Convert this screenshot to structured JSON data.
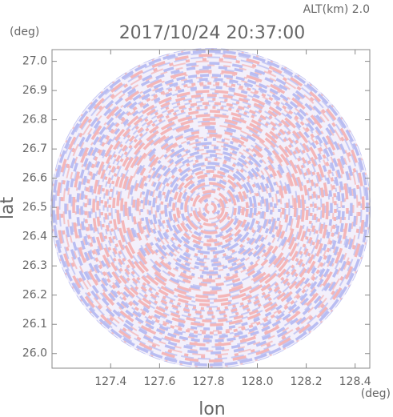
{
  "chart_data": {
    "type": "radar-field",
    "title": "2017/10/24 20:37:00",
    "annotation": "ALT(km) 2.0",
    "x_label": "lon",
    "y_label": "lat",
    "x_unit": "(deg)",
    "y_unit": "(deg)",
    "xlim": [
      127.16,
      128.46
    ],
    "ylim": [
      25.95,
      27.04
    ],
    "xticks": [
      127.4,
      127.6,
      127.8,
      {
        "value": 128,
        "label": "128.0"
      },
      128.2,
      128.4
    ],
    "yticks": [
      {
        "value": 26,
        "label": "26.0"
      },
      26.1,
      26.2,
      26.3,
      26.4,
      26.5,
      26.6,
      26.7,
      26.8,
      26.9,
      {
        "value": 27,
        "label": "27.0"
      }
    ],
    "grid": false
  }
}
